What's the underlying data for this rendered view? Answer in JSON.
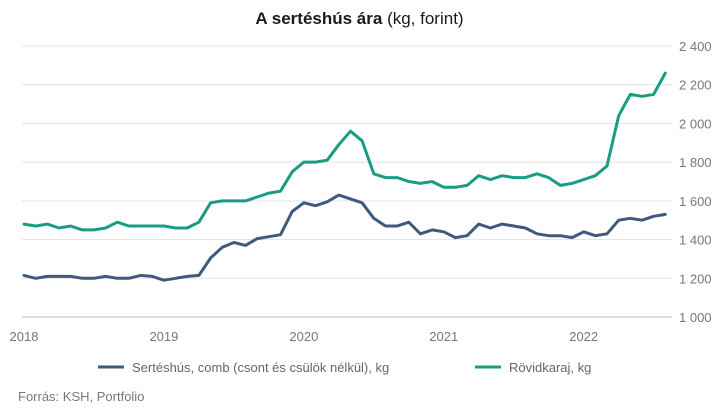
{
  "chart_data": {
    "type": "line",
    "title": "A sertéshús ára",
    "title_suffix": "(kg, forint)",
    "ylim": [
      1000,
      2400
    ],
    "y_ticks": [
      1000,
      1200,
      1400,
      1600,
      1800,
      2000,
      2200,
      2400
    ],
    "y_tick_labels": [
      "1 000",
      "1 200",
      "1 400",
      "1 600",
      "1 800",
      "2 000",
      "2 200",
      "2 400"
    ],
    "x_ticks": [
      2018,
      2019,
      2020,
      2021,
      2022
    ],
    "x_tick_labels": [
      "2018",
      "2019",
      "2020",
      "2021",
      "2022"
    ],
    "y_axis_position": "right",
    "grid": "horizontal",
    "legend_position": "bottom",
    "x": [
      "2018-01",
      "2018-02",
      "2018-03",
      "2018-04",
      "2018-05",
      "2018-06",
      "2018-07",
      "2018-08",
      "2018-09",
      "2018-10",
      "2018-11",
      "2018-12",
      "2019-01",
      "2019-02",
      "2019-03",
      "2019-04",
      "2019-05",
      "2019-06",
      "2019-07",
      "2019-08",
      "2019-09",
      "2019-10",
      "2019-11",
      "2019-12",
      "2020-01",
      "2020-02",
      "2020-03",
      "2020-04",
      "2020-05",
      "2020-06",
      "2020-07",
      "2020-08",
      "2020-09",
      "2020-10",
      "2020-11",
      "2020-12",
      "2021-01",
      "2021-02",
      "2021-03",
      "2021-04",
      "2021-05",
      "2021-06",
      "2021-07",
      "2021-08",
      "2021-09",
      "2021-10",
      "2021-11",
      "2021-12",
      "2022-01",
      "2022-02",
      "2022-03",
      "2022-04",
      "2022-05",
      "2022-06",
      "2022-07",
      "2022-08"
    ],
    "series": [
      {
        "name": "Sertéshús, comb (csont és csülök nélkül), kg",
        "color": "#3e5a7c",
        "values": [
          1215,
          1200,
          1210,
          1210,
          1210,
          1200,
          1200,
          1210,
          1200,
          1200,
          1215,
          1210,
          1190,
          1200,
          1210,
          1215,
          1305,
          1360,
          1385,
          1370,
          1405,
          1415,
          1425,
          1545,
          1590,
          1575,
          1595,
          1630,
          1610,
          1590,
          1510,
          1470,
          1470,
          1490,
          1430,
          1450,
          1440,
          1410,
          1420,
          1480,
          1460,
          1480,
          1470,
          1460,
          1430,
          1420,
          1420,
          1410,
          1440,
          1420,
          1430,
          1500,
          1510,
          1500,
          1520,
          1530
        ]
      },
      {
        "name": "Rövidkaraj, kg",
        "color": "#1a9c82",
        "values": [
          1480,
          1470,
          1480,
          1460,
          1470,
          1450,
          1450,
          1460,
          1490,
          1470,
          1470,
          1470,
          1470,
          1460,
          1460,
          1490,
          1590,
          1600,
          1600,
          1600,
          1620,
          1640,
          1650,
          1750,
          1800,
          1800,
          1810,
          1890,
          1960,
          1910,
          1740,
          1720,
          1720,
          1700,
          1690,
          1700,
          1670,
          1670,
          1680,
          1730,
          1710,
          1730,
          1720,
          1720,
          1740,
          1720,
          1680,
          1690,
          1710,
          1730,
          1780,
          2040,
          2150,
          2140,
          2150,
          2260
        ]
      }
    ]
  },
  "source": "Forrás: KSH, Portfolio"
}
